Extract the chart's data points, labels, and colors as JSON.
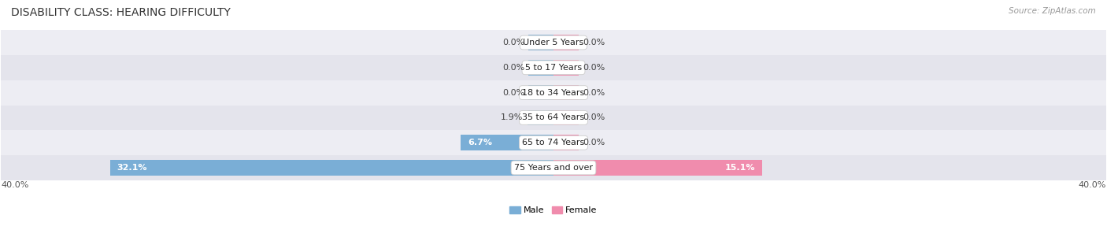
{
  "title": "DISABILITY CLASS: HEARING DIFFICULTY",
  "source_text": "Source: ZipAtlas.com",
  "categories": [
    "Under 5 Years",
    "5 to 17 Years",
    "18 to 34 Years",
    "35 to 64 Years",
    "65 to 74 Years",
    "75 Years and over"
  ],
  "male_values": [
    0.0,
    0.0,
    0.0,
    1.9,
    6.7,
    32.1
  ],
  "female_values": [
    0.0,
    0.0,
    0.0,
    0.0,
    0.0,
    15.1
  ],
  "male_color": "#7aaed6",
  "female_color": "#f08cad",
  "row_bg_color_odd": "#ededf3",
  "row_bg_color_even": "#e4e4ec",
  "max_val": 40.0,
  "min_bar_width": 1.8,
  "legend_male": "Male",
  "legend_female": "Female",
  "title_fontsize": 10,
  "source_fontsize": 7.5,
  "label_fontsize": 8,
  "category_fontsize": 8,
  "bar_height": 0.62,
  "figsize": [
    14.06,
    3.06
  ],
  "dpi": 100
}
